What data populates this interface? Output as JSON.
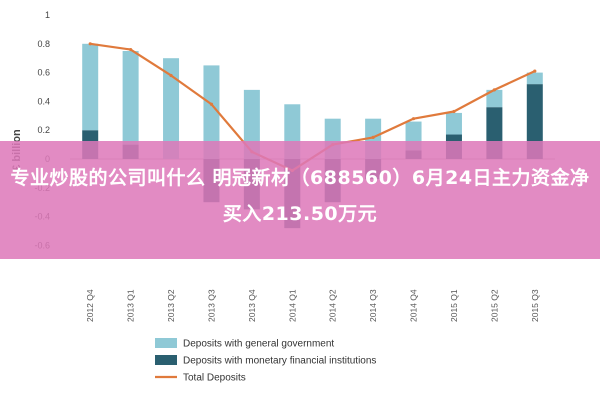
{
  "chart_data": {
    "type": "bar",
    "categories": [
      "2012 Q4",
      "2013 Q1",
      "2013 Q2",
      "2013 Q3",
      "2013 Q4",
      "2014 Q1",
      "2014 Q2",
      "2014 Q3",
      "2014 Q4",
      "2015 Q1",
      "2015 Q2",
      "2015 Q3"
    ],
    "series": [
      {
        "name": "Deposits with general government",
        "kind": "bar",
        "color": "#8fc9d6",
        "values": [
          0.6,
          0.65,
          0.7,
          0.65,
          0.48,
          0.38,
          0.28,
          0.28,
          0.2,
          0.15,
          0.12,
          0.08
        ]
      },
      {
        "name": "Deposits with monetary financial institutions",
        "kind": "bar",
        "color": "#2a5f70",
        "values": [
          0.2,
          0.1,
          0.0,
          -0.3,
          -0.35,
          -0.48,
          -0.3,
          -0.14,
          0.06,
          0.17,
          0.36,
          0.52
        ]
      },
      {
        "name": "Total Deposits",
        "kind": "line",
        "color": "#e07a3c",
        "values": [
          0.8,
          0.76,
          0.58,
          0.38,
          0.05,
          -0.08,
          0.1,
          0.15,
          0.28,
          0.33,
          0.48,
          0.61
        ]
      }
    ],
    "ylabel": "£ billion",
    "yticks": [
      "1",
      "0.8",
      "0.6",
      "0.4",
      "0.2",
      "0",
      "-0.2",
      "-0.4",
      "-0.6"
    ],
    "ylim": [
      -0.6,
      1.0
    ],
    "grid": false,
    "legend_position": "bottom"
  },
  "banner": {
    "text": "专业炒股的公司叫什么 明冠新材（688560）6月24日主力资金净买入213.50万元",
    "color": "#dd78b9"
  }
}
